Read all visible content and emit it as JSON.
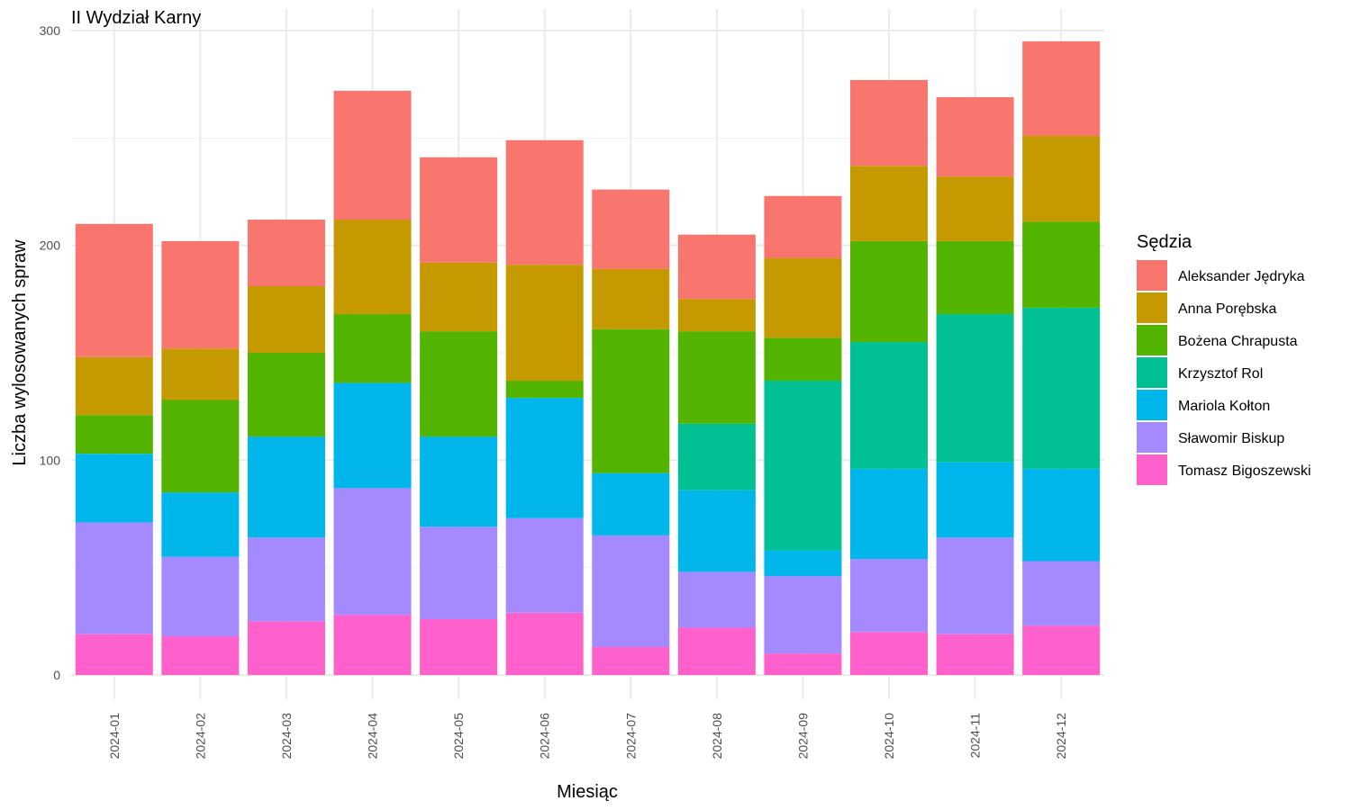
{
  "chart_data": {
    "type": "bar",
    "stacked": true,
    "title": "II Wydział Karny",
    "xlabel": "Miesiąc",
    "ylabel": "Liczba wylosowanych spraw",
    "ylim": [
      0,
      300
    ],
    "yticks": [
      0,
      100,
      200,
      300
    ],
    "grid": true,
    "legend_title": "Sędzia",
    "legend_position": "right",
    "categories": [
      "2024-01",
      "2024-02",
      "2024-03",
      "2024-04",
      "2024-05",
      "2024-06",
      "2024-07",
      "2024-08",
      "2024-09",
      "2024-10",
      "2024-11",
      "2024-12"
    ],
    "series": [
      {
        "name": "Tomasz Bigoszewski",
        "color": "#FF61CC",
        "values": [
          19,
          18,
          25,
          28,
          26,
          29,
          13,
          22,
          10,
          20,
          19,
          23
        ]
      },
      {
        "name": "Sławomir Biskup",
        "color": "#A58AFF",
        "values": [
          52,
          37,
          39,
          59,
          43,
          44,
          52,
          26,
          36,
          34,
          45,
          30
        ]
      },
      {
        "name": "Mariola Kołton",
        "color": "#00B6EB",
        "values": [
          32,
          30,
          47,
          49,
          42,
          56,
          29,
          38,
          12,
          42,
          35,
          43
        ]
      },
      {
        "name": "Krzysztof Rol",
        "color": "#00C094",
        "values": [
          0,
          0,
          0,
          0,
          0,
          0,
          0,
          31,
          79,
          59,
          69,
          75
        ]
      },
      {
        "name": "Bożena Chrapusta",
        "color": "#53B400",
        "values": [
          18,
          43,
          39,
          32,
          49,
          8,
          67,
          43,
          20,
          47,
          34,
          40
        ]
      },
      {
        "name": "Anna Porębska",
        "color": "#C49A00",
        "values": [
          27,
          24,
          31,
          44,
          32,
          54,
          28,
          15,
          37,
          35,
          30,
          40
        ]
      },
      {
        "name": "Aleksander Jędryka",
        "color": "#F8766D",
        "values": [
          62,
          50,
          31,
          60,
          49,
          58,
          37,
          30,
          29,
          40,
          37,
          44
        ]
      }
    ],
    "legend_order": [
      "Aleksander Jędryka",
      "Anna Porębska",
      "Bożena Chrapusta",
      "Krzysztof Rol",
      "Mariola Kołton",
      "Sławomir Biskup",
      "Tomasz Bigoszewski"
    ]
  }
}
